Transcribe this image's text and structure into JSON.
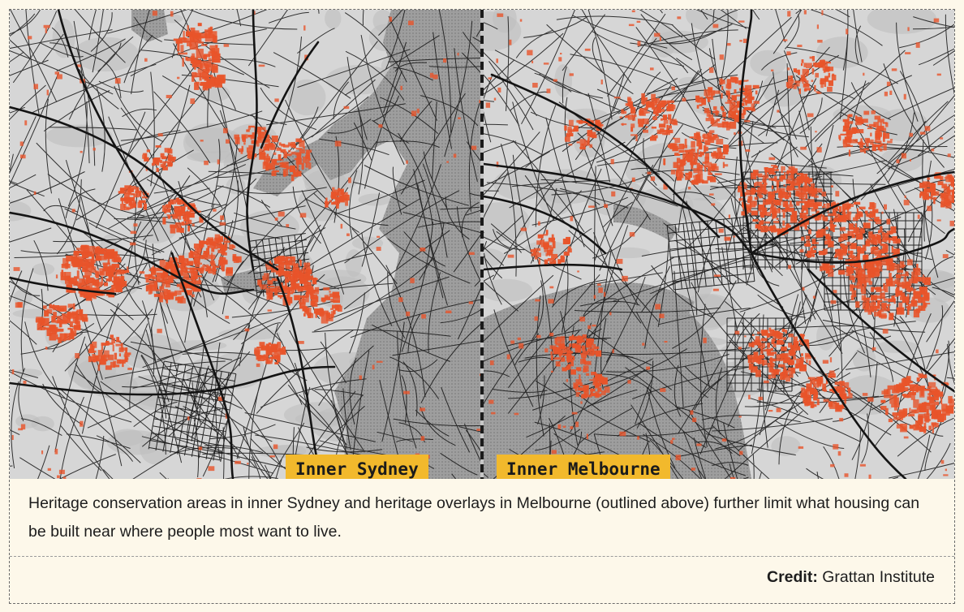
{
  "maps": [
    {
      "label": "Inner Sydney"
    },
    {
      "label": "Inner Melbourne"
    }
  ],
  "caption": "Heritage conservation areas in inner Sydney and heritage overlays in Melbourne (outlined above) further limit what housing can be built near where people most want to live.",
  "credit": {
    "label": "Credit:",
    "source": "Grattan Institute"
  },
  "colors": {
    "heritage": "#e8542a",
    "land": "#d6d6d6",
    "water": "#9e9e9e",
    "roads": "#141414",
    "label_bg": "#f2b92c",
    "page_bg": "#fdf8ea"
  }
}
